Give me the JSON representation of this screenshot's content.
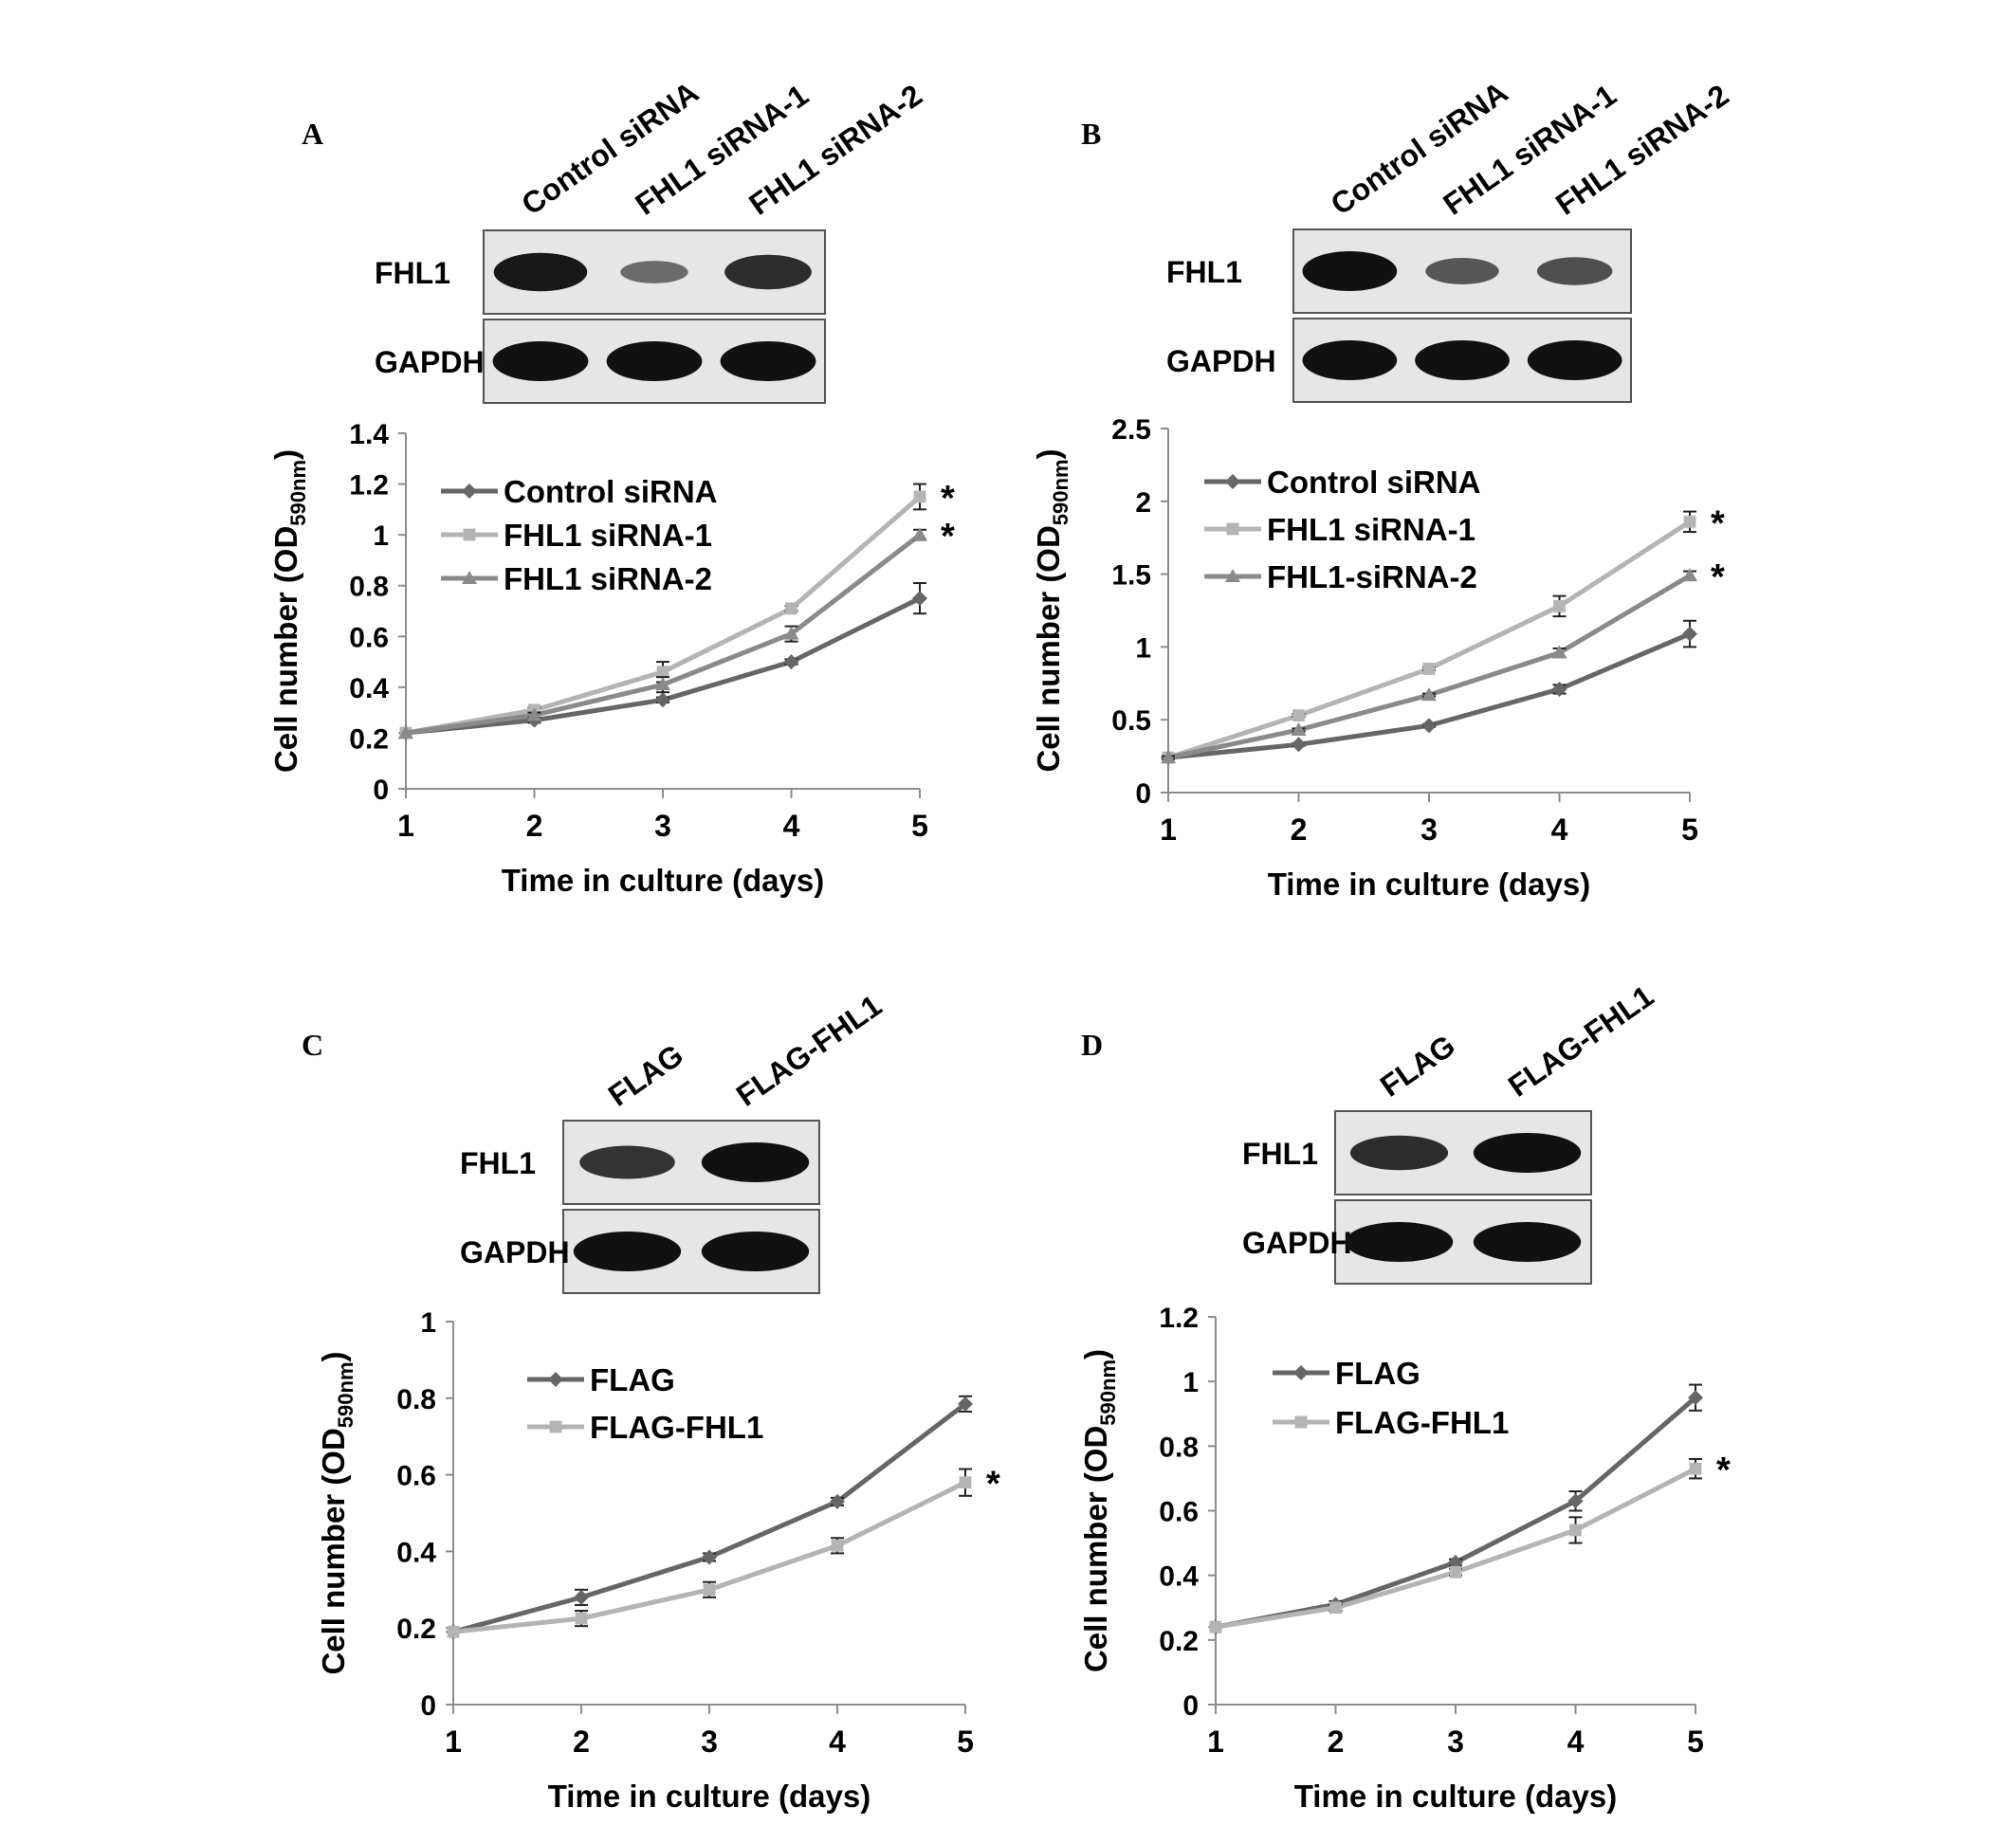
{
  "colors": {
    "series_dark": "#666666",
    "series_light": "#b4b4b4",
    "axis": "#8c8c8c",
    "text": "#000000",
    "blot_border": "#555555",
    "blot_bg": "#e6e6e6",
    "band": "#111111"
  },
  "panels": [
    {
      "letter": "A",
      "blot": {
        "lane_labels": [
          "Control siRNA",
          "FHL1  siRNA-1",
          "FHL1  siRNA-2"
        ],
        "rows": [
          {
            "label": "FHL1",
            "band_intensity": [
              0.95,
              0.35,
              0.8
            ]
          },
          {
            "label": "GAPDH",
            "band_intensity": [
              1.0,
              1.0,
              1.0
            ]
          }
        ]
      },
      "chart": {
        "type": "line",
        "xlabel": "Time in culture (days)",
        "x": [
          1,
          2,
          3,
          4,
          5
        ],
        "ylim": [
          0,
          1.4
        ],
        "yticks": [
          0,
          0.2,
          0.4,
          0.6,
          0.8,
          1,
          1.2,
          1.4
        ],
        "ytick_labels": [
          "0",
          "0.2",
          "0.4",
          "0.6",
          "0.8",
          "1",
          "1.2",
          "1.4"
        ],
        "series": [
          {
            "name": "Control siRNA",
            "marker": "diamond",
            "color": "#666666",
            "values": [
              0.22,
              0.27,
              0.35,
              0.5,
              0.75
            ],
            "errors": [
              0.005,
              0.01,
              0.01,
              0.01,
              0.06
            ]
          },
          {
            "name": "FHL1 siRNA-1",
            "marker": "square",
            "color": "#b4b4b4",
            "values": [
              0.22,
              0.31,
              0.46,
              0.71,
              1.15
            ],
            "errors": [
              0.005,
              0.01,
              0.04,
              0.01,
              0.05
            ]
          },
          {
            "name": "FHL1 siRNA-2",
            "marker": "triangle",
            "color": "#8a8a8a",
            "values": [
              0.22,
              0.29,
              0.41,
              0.61,
              1.0
            ],
            "errors": [
              0.005,
              0.01,
              0.03,
              0.03,
              0.02
            ]
          }
        ],
        "significance": [
          "*",
          "*"
        ]
      }
    },
    {
      "letter": "B",
      "blot": {
        "lane_labels": [
          "Control siRNA",
          "FHL1  siRNA-1",
          "FHL1  siRNA-2"
        ],
        "rows": [
          {
            "label": "FHL1",
            "band_intensity": [
              1.0,
              0.5,
              0.55
            ]
          },
          {
            "label": "GAPDH",
            "band_intensity": [
              1.0,
              1.0,
              1.0
            ]
          }
        ]
      },
      "chart": {
        "type": "line",
        "xlabel": "Time in culture (days)",
        "x": [
          1,
          2,
          3,
          4,
          5
        ],
        "ylim": [
          0,
          2.5
        ],
        "yticks": [
          0,
          0.5,
          1,
          1.5,
          2,
          2.5
        ],
        "ytick_labels": [
          "0",
          "0.5",
          "1",
          "1.5",
          "2",
          "2.5"
        ],
        "series": [
          {
            "name": "Control siRNA",
            "marker": "diamond",
            "color": "#666666",
            "values": [
              0.24,
              0.33,
              0.46,
              0.71,
              1.09
            ],
            "errors": [
              0.01,
              0.01,
              0.01,
              0.03,
              0.09
            ]
          },
          {
            "name": "FHL1 siRNA-1",
            "marker": "square",
            "color": "#b4b4b4",
            "values": [
              0.24,
              0.53,
              0.85,
              1.28,
              1.86
            ],
            "errors": [
              0.01,
              0.01,
              0.01,
              0.07,
              0.07
            ]
          },
          {
            "name": "FHL1-siRNA-2",
            "marker": "triangle",
            "color": "#8a8a8a",
            "values": [
              0.24,
              0.43,
              0.67,
              0.96,
              1.49
            ],
            "errors": [
              0.01,
              0.01,
              0.01,
              0.03,
              0.03
            ]
          }
        ],
        "significance": [
          "*",
          "*"
        ]
      }
    },
    {
      "letter": "C",
      "blot": {
        "lane_labels": [
          "FLAG",
          "FLAG-FHL1"
        ],
        "rows": [
          {
            "label": "FHL1",
            "band_intensity": [
              0.75,
              1.0
            ]
          },
          {
            "label": "GAPDH",
            "band_intensity": [
              1.0,
              1.0
            ]
          }
        ]
      },
      "chart": {
        "type": "line",
        "xlabel": "Time in culture (days)",
        "x": [
          1,
          2,
          3,
          4,
          5
        ],
        "ylim": [
          0,
          1
        ],
        "yticks": [
          0,
          0.2,
          0.4,
          0.6,
          0.8,
          1
        ],
        "ytick_labels": [
          "0",
          "0.2",
          "0.4",
          "0.6",
          "0.8",
          "1"
        ],
        "series": [
          {
            "name": "FLAG",
            "marker": "diamond",
            "color": "#666666",
            "values": [
              0.19,
              0.28,
              0.385,
              0.53,
              0.785
            ],
            "errors": [
              0.005,
              0.02,
              0.01,
              0.01,
              0.02
            ]
          },
          {
            "name": "FLAG-FHL1",
            "marker": "square",
            "color": "#b4b4b4",
            "values": [
              0.19,
              0.225,
              0.3,
              0.415,
              0.58
            ],
            "errors": [
              0.005,
              0.02,
              0.02,
              0.02,
              0.035
            ]
          }
        ],
        "significance": [
          "*"
        ]
      }
    },
    {
      "letter": "D",
      "blot": {
        "lane_labels": [
          "FLAG",
          "FLAG-FHL1"
        ],
        "rows": [
          {
            "label": "FHL1",
            "band_intensity": [
              0.8,
              1.0
            ]
          },
          {
            "label": "GAPDH",
            "band_intensity": [
              1.0,
              1.0
            ]
          }
        ]
      },
      "chart": {
        "type": "line",
        "xlabel": "Time in culture (days)",
        "x": [
          1,
          2,
          3,
          4,
          5
        ],
        "ylim": [
          0,
          1.2
        ],
        "yticks": [
          0,
          0.2,
          0.4,
          0.6,
          0.8,
          1,
          1.2
        ],
        "ytick_labels": [
          "0",
          "0.2",
          "0.4",
          "0.6",
          "0.8",
          "1",
          "1.2"
        ],
        "series": [
          {
            "name": "FLAG",
            "marker": "diamond",
            "color": "#666666",
            "values": [
              0.24,
              0.31,
              0.44,
              0.63,
              0.95
            ],
            "errors": [
              0.005,
              0.01,
              0.01,
              0.03,
              0.04
            ]
          },
          {
            "name": "FLAG-FHL1",
            "marker": "square",
            "color": "#b4b4b4",
            "values": [
              0.24,
              0.3,
              0.41,
              0.54,
              0.73
            ],
            "errors": [
              0.005,
              0.01,
              0.01,
              0.04,
              0.03
            ]
          }
        ],
        "significance": [
          "*"
        ]
      }
    }
  ],
  "chart_data": [
    {
      "type": "line",
      "title": "",
      "xlabel": "Time in culture (days)",
      "ylabel": "Cell number (OD590nm)",
      "x": [
        1,
        2,
        3,
        4,
        5
      ],
      "ylim": [
        0,
        1.4
      ],
      "series": [
        {
          "name": "Control siRNA",
          "values": [
            0.22,
            0.27,
            0.35,
            0.5,
            0.75
          ]
        },
        {
          "name": "FHL1 siRNA-1",
          "values": [
            0.22,
            0.31,
            0.46,
            0.71,
            1.15
          ]
        },
        {
          "name": "FHL1 siRNA-2",
          "values": [
            0.22,
            0.29,
            0.41,
            0.61,
            1.0
          ]
        }
      ],
      "legend": "upper-left",
      "grid": false
    },
    {
      "type": "line",
      "title": "",
      "xlabel": "Time in culture (days)",
      "ylabel": "Cell number (OD590nm)",
      "x": [
        1,
        2,
        3,
        4,
        5
      ],
      "ylim": [
        0,
        2.5
      ],
      "series": [
        {
          "name": "Control siRNA",
          "values": [
            0.24,
            0.33,
            0.46,
            0.71,
            1.09
          ]
        },
        {
          "name": "FHL1 siRNA-1",
          "values": [
            0.24,
            0.53,
            0.85,
            1.28,
            1.86
          ]
        },
        {
          "name": "FHL1-siRNA-2",
          "values": [
            0.24,
            0.43,
            0.67,
            0.96,
            1.49
          ]
        }
      ],
      "legend": "upper-left",
      "grid": false
    },
    {
      "type": "line",
      "title": "",
      "xlabel": "Time in culture (days)",
      "ylabel": "Cell number (OD590nm)",
      "x": [
        1,
        2,
        3,
        4,
        5
      ],
      "ylim": [
        0,
        1
      ],
      "series": [
        {
          "name": "FLAG",
          "values": [
            0.19,
            0.28,
            0.385,
            0.53,
            0.785
          ]
        },
        {
          "name": "FLAG-FHL1",
          "values": [
            0.19,
            0.225,
            0.3,
            0.415,
            0.58
          ]
        }
      ],
      "legend": "upper-left",
      "grid": false
    },
    {
      "type": "line",
      "title": "",
      "xlabel": "Time in culture (days)",
      "ylabel": "Cell number (OD590nm)",
      "x": [
        1,
        2,
        3,
        4,
        5
      ],
      "ylim": [
        0,
        1.2
      ],
      "series": [
        {
          "name": "FLAG",
          "values": [
            0.24,
            0.31,
            0.44,
            0.63,
            0.95
          ]
        },
        {
          "name": "FLAG-FHL1",
          "values": [
            0.24,
            0.3,
            0.41,
            0.54,
            0.73
          ]
        }
      ],
      "legend": "upper-left",
      "grid": false
    }
  ],
  "ylabel_parts": {
    "main": "Cell number (OD",
    "sub": "590nm",
    "close": ")"
  }
}
